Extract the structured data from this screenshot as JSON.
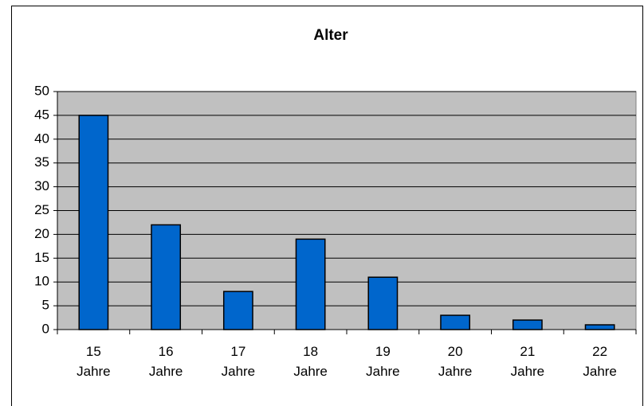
{
  "chart_data": {
    "type": "bar",
    "title": "Alter",
    "categories": [
      "15 Jahre",
      "16 Jahre",
      "17 Jahre",
      "18 Jahre",
      "19 Jahre",
      "20 Jahre",
      "21 Jahre",
      "22 Jahre"
    ],
    "values": [
      45,
      22,
      8,
      19,
      11,
      3,
      2,
      1
    ],
    "color": "#0066cc",
    "ylim": [
      0,
      50
    ],
    "yticks": [
      0,
      5,
      10,
      15,
      20,
      25,
      30,
      35,
      40,
      45,
      50
    ],
    "grid": true
  }
}
